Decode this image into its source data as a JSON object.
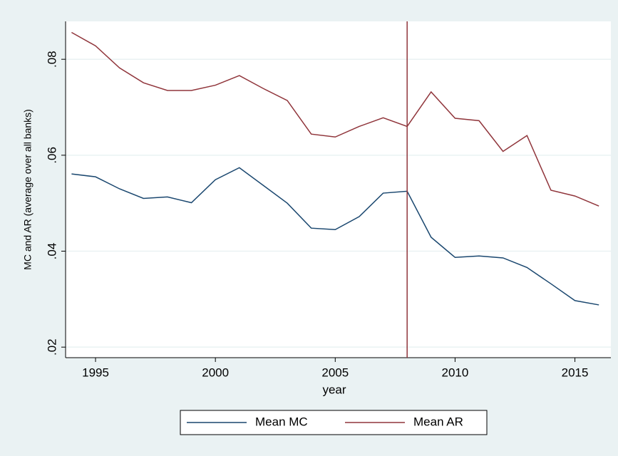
{
  "chart_data": {
    "type": "line",
    "x": [
      1994,
      1995,
      1996,
      1997,
      1998,
      1999,
      2000,
      2001,
      2002,
      2003,
      2004,
      2005,
      2006,
      2007,
      2008,
      2009,
      2010,
      2011,
      2012,
      2013,
      2014,
      2015,
      2016
    ],
    "series": [
      {
        "name": "Mean MC",
        "color": "#1a476f",
        "values": [
          0.0561,
          0.0555,
          0.053,
          0.051,
          0.0513,
          0.0501,
          0.0549,
          0.0574,
          0.0537,
          0.05,
          0.0448,
          0.0445,
          0.0472,
          0.0521,
          0.0525,
          0.0429,
          0.0387,
          0.039,
          0.0386,
          0.0366,
          0.0332,
          0.0297,
          0.0288
        ]
      },
      {
        "name": "Mean AR",
        "color": "#90353b",
        "values": [
          0.0856,
          0.0828,
          0.0782,
          0.0751,
          0.0735,
          0.0735,
          0.0746,
          0.0766,
          0.0739,
          0.0714,
          0.0644,
          0.0638,
          0.066,
          0.0678,
          0.066,
          0.0732,
          0.0677,
          0.0672,
          0.0608,
          0.0641,
          0.0527,
          0.0515,
          0.0494
        ]
      }
    ],
    "x_label": "year",
    "y_label": "MC and AR (average over all banks)",
    "xlim": [
      1993.75,
      2016.5
    ],
    "ylim": [
      0.0178,
      0.0879
    ],
    "xticks": [
      1995,
      2000,
      2005,
      2010,
      2015
    ],
    "yticks": [
      {
        "value": 0.02,
        "label": ".02"
      },
      {
        "value": 0.04,
        "label": ".04"
      },
      {
        "value": 0.06,
        "label": ".06"
      },
      {
        "value": 0.08,
        "label": ".08"
      }
    ],
    "grid": true,
    "vline": 2008,
    "vline_color": "#90353b",
    "legend": "bottom"
  }
}
